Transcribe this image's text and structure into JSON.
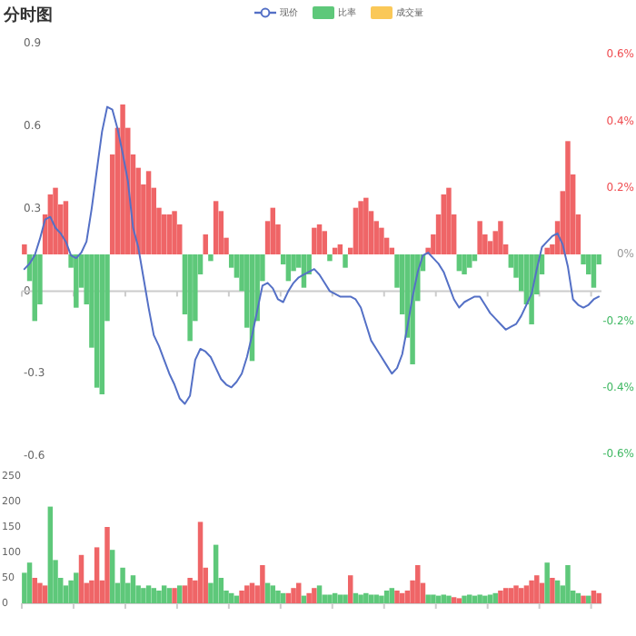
{
  "chart_data": [
    {
      "type": "line",
      "title": "分时图",
      "legend": "top",
      "categories": [
        null,
        null,
        null,
        null,
        null,
        null,
        null,
        null,
        null,
        null,
        null,
        null,
        null,
        null,
        null,
        null,
        null,
        null,
        null,
        null,
        null,
        null,
        null,
        null,
        null,
        null,
        null,
        null,
        null,
        null,
        null,
        null,
        null,
        null,
        null,
        null,
        null,
        null,
        null,
        null,
        null,
        null,
        null,
        null,
        null,
        null,
        null,
        null,
        null,
        null,
        null,
        null,
        null,
        null,
        null,
        null,
        null,
        null,
        null,
        null,
        null,
        null,
        null,
        null,
        null,
        null,
        null,
        null,
        null,
        null,
        null,
        null,
        null,
        null,
        null,
        null,
        null,
        null,
        null,
        null,
        null,
        null,
        null,
        null,
        null,
        null,
        null,
        null,
        null,
        null,
        null,
        null,
        null,
        null,
        null,
        null,
        null,
        null,
        null,
        null,
        null,
        null,
        null,
        null,
        null,
        null,
        null,
        null,
        null,
        null,
        null,
        null
      ],
      "ylim": [
        -0.6,
        0.9
      ],
      "yticks": [
        0.9,
        0.6,
        0.3,
        0,
        -0.3,
        -0.6
      ],
      "y2lim": [
        -0.6,
        0.6
      ],
      "y2ticks": [
        {
          "value": 0.6,
          "label": "0.6%"
        },
        {
          "value": 0.4,
          "label": "0.4%"
        },
        {
          "value": 0.2,
          "label": "0.2%"
        },
        {
          "value": 0,
          "label": "0%"
        },
        {
          "value": -0.2,
          "label": "-0.2%"
        },
        {
          "value": -0.4,
          "label": "-0.4%"
        },
        {
          "value": -0.6,
          "label": "-0.6%"
        }
      ],
      "series": [
        {
          "name": "现价",
          "type": "line",
          "axis": "y",
          "color": "#5470c6",
          "values": [
            0.08,
            0.1,
            0.13,
            0.19,
            0.26,
            0.27,
            0.23,
            0.21,
            0.18,
            0.13,
            0.12,
            0.14,
            0.18,
            0.3,
            0.44,
            0.58,
            0.67,
            0.66,
            0.59,
            0.5,
            0.4,
            0.23,
            0.16,
            0.05,
            -0.06,
            -0.16,
            -0.2,
            -0.25,
            -0.3,
            -0.34,
            -0.39,
            -0.41,
            -0.38,
            -0.25,
            -0.21,
            -0.22,
            -0.24,
            -0.28,
            -0.32,
            -0.34,
            -0.35,
            -0.33,
            -0.3,
            -0.24,
            -0.16,
            -0.07,
            0.02,
            0.03,
            0.01,
            -0.03,
            -0.04,
            0,
            0.03,
            0.05,
            0.06,
            0.07,
            0.08,
            0.06,
            0.03,
            0,
            -0.01,
            -0.02,
            -0.02,
            -0.02,
            -0.03,
            -0.06,
            -0.12,
            -0.18,
            -0.21,
            -0.24,
            -0.27,
            -0.3,
            -0.28,
            -0.23,
            -0.13,
            -0.02,
            0.07,
            0.13,
            0.14,
            0.12,
            0.1,
            0.07,
            0.02,
            -0.03,
            -0.06,
            -0.04,
            -0.03,
            -0.02,
            -0.02,
            -0.05,
            -0.08,
            -0.1,
            -0.12,
            -0.14,
            -0.13,
            -0.12,
            -0.09,
            -0.05,
            -0.01,
            0.08,
            0.16,
            0.18,
            0.2,
            0.21,
            0.17,
            0.09,
            -0.03,
            -0.05,
            -0.06,
            -0.05,
            -0.03,
            -0.02
          ]
        },
        {
          "name": "比率",
          "type": "bar",
          "axis": "y2",
          "color": "#5ec87a",
          "values": [
            0.03,
            -0.08,
            -0.2,
            -0.15,
            0.12,
            0.18,
            0.2,
            0.15,
            0.16,
            -0.04,
            -0.16,
            -0.1,
            -0.15,
            -0.28,
            -0.4,
            -0.42,
            -0.2,
            0.3,
            0.38,
            0.45,
            0.38,
            0.3,
            0.26,
            0.21,
            0.25,
            0.2,
            0.14,
            0.12,
            0.12,
            0.13,
            0.09,
            -0.18,
            -0.26,
            -0.2,
            -0.06,
            0.06,
            -0.02,
            0.16,
            0.13,
            0.05,
            -0.04,
            -0.07,
            -0.11,
            -0.22,
            -0.32,
            -0.2,
            -0.08,
            0.1,
            0.14,
            0.09,
            -0.03,
            -0.08,
            -0.05,
            -0.04,
            -0.1,
            -0.06,
            0.08,
            0.09,
            0.07,
            -0.02,
            0.02,
            0.03,
            -0.04,
            0.02,
            0.14,
            0.16,
            0.17,
            0.13,
            0.1,
            0.08,
            0.05,
            0.02,
            -0.1,
            -0.18,
            -0.25,
            -0.33,
            -0.14,
            -0.05,
            0.02,
            0.06,
            0.12,
            0.18,
            0.2,
            0.12,
            -0.05,
            -0.06,
            -0.04,
            -0.02,
            0.1,
            0.06,
            0.04,
            0.07,
            0.1,
            0.03,
            -0.04,
            -0.07,
            -0.11,
            -0.15,
            -0.21,
            -0.12,
            -0.06,
            0.02,
            0.03,
            0.1,
            0.19,
            0.34,
            0.24,
            0.12,
            -0.03,
            -0.06,
            -0.1,
            -0.03
          ],
          "colors": [
            "#ef6567",
            "#5ec87a",
            "#5ec87a",
            "#5ec87a",
            "#ef6567",
            "#ef6567",
            "#ef6567",
            "#ef6567",
            "#ef6567",
            "#5ec87a",
            "#5ec87a",
            "#5ec87a",
            "#5ec87a",
            "#5ec87a",
            "#5ec87a",
            "#5ec87a",
            "#5ec87a",
            "#ef6567",
            "#ef6567",
            "#ef6567",
            "#ef6567",
            "#ef6567",
            "#ef6567",
            "#ef6567",
            "#ef6567",
            "#ef6567",
            "#ef6567",
            "#ef6567",
            "#ef6567",
            "#ef6567",
            "#ef6567",
            "#5ec87a",
            "#5ec87a",
            "#5ec87a",
            "#5ec87a",
            "#ef6567",
            "#5ec87a",
            "#ef6567",
            "#ef6567",
            "#ef6567",
            "#5ec87a",
            "#5ec87a",
            "#5ec87a",
            "#5ec87a",
            "#5ec87a",
            "#5ec87a",
            "#5ec87a",
            "#ef6567",
            "#ef6567",
            "#ef6567",
            "#5ec87a",
            "#5ec87a",
            "#5ec87a",
            "#5ec87a",
            "#5ec87a",
            "#5ec87a",
            "#ef6567",
            "#ef6567",
            "#ef6567",
            "#5ec87a",
            "#ef6567",
            "#ef6567",
            "#5ec87a",
            "#ef6567",
            "#ef6567",
            "#ef6567",
            "#ef6567",
            "#ef6567",
            "#ef6567",
            "#ef6567",
            "#ef6567",
            "#ef6567",
            "#5ec87a",
            "#5ec87a",
            "#5ec87a",
            "#5ec87a",
            "#5ec87a",
            "#5ec87a",
            "#ef6567",
            "#ef6567",
            "#ef6567",
            "#ef6567",
            "#ef6567",
            "#ef6567",
            "#5ec87a",
            "#5ec87a",
            "#5ec87a",
            "#5ec87a",
            "#ef6567",
            "#ef6567",
            "#ef6567",
            "#ef6567",
            "#ef6567",
            "#ef6567",
            "#5ec87a",
            "#5ec87a",
            "#5ec87a",
            "#5ec87a",
            "#5ec87a",
            "#5ec87a",
            "#5ec87a",
            "#ef6567",
            "#ef6567",
            "#ef6567",
            "#ef6567",
            "#ef6567",
            "#ef6567",
            "#ef6567",
            "#5ec87a",
            "#5ec87a",
            "#5ec87a",
            "#5ec87a"
          ]
        }
      ]
    },
    {
      "type": "bar",
      "legend": "top",
      "categories": [
        null,
        null,
        null,
        null,
        null,
        null,
        null,
        null,
        null,
        null,
        null,
        null,
        null,
        null,
        null,
        null,
        null,
        null,
        null,
        null,
        null,
        null,
        null,
        null,
        null,
        null,
        null,
        null,
        null,
        null,
        null,
        null,
        null,
        null,
        null,
        null,
        null,
        null,
        null,
        null,
        null,
        null,
        null,
        null,
        null,
        null,
        null,
        null,
        null,
        null,
        null,
        null,
        null,
        null,
        null,
        null,
        null,
        null,
        null,
        null,
        null,
        null,
        null,
        null,
        null,
        null,
        null,
        null,
        null,
        null,
        null,
        null,
        null,
        null,
        null,
        null,
        null,
        null,
        null,
        null,
        null,
        null,
        null,
        null,
        null,
        null,
        null,
        null,
        null,
        null,
        null,
        null,
        null,
        null,
        null,
        null,
        null,
        null,
        null,
        null,
        null,
        null,
        null,
        null,
        null,
        null,
        null,
        null,
        null,
        null,
        null,
        null
      ],
      "ylim": [
        0,
        250
      ],
      "yticks": [
        0,
        50,
        100,
        150,
        200,
        250
      ],
      "series": [
        {
          "name": "成交量",
          "color": "#fac858",
          "values": [
            60,
            80,
            50,
            40,
            35,
            190,
            85,
            50,
            35,
            45,
            60,
            95,
            40,
            45,
            110,
            45,
            150,
            105,
            40,
            70,
            40,
            55,
            35,
            30,
            35,
            30,
            25,
            35,
            30,
            30,
            35,
            35,
            50,
            45,
            160,
            70,
            40,
            115,
            50,
            25,
            20,
            15,
            25,
            35,
            40,
            35,
            75,
            40,
            35,
            25,
            20,
            20,
            30,
            40,
            15,
            20,
            30,
            35,
            17,
            17,
            20,
            17,
            17,
            55,
            20,
            17,
            20,
            17,
            17,
            15,
            25,
            30,
            25,
            20,
            25,
            45,
            75,
            40,
            17,
            17,
            15,
            17,
            15,
            12,
            10,
            15,
            17,
            15,
            17,
            15,
            17,
            20,
            25,
            30,
            30,
            35,
            30,
            35,
            45,
            55,
            40,
            80,
            50,
            45,
            35,
            75,
            25,
            20,
            15,
            15,
            25,
            20
          ],
          "colors": [
            "#5ec87a",
            "#5ec87a",
            "#ef6567",
            "#ef6567",
            "#ef6567",
            "#5ec87a",
            "#5ec87a",
            "#5ec87a",
            "#5ec87a",
            "#5ec87a",
            "#5ec87a",
            "#ef6567",
            "#ef6567",
            "#ef6567",
            "#ef6567",
            "#ef6567",
            "#ef6567",
            "#5ec87a",
            "#5ec87a",
            "#5ec87a",
            "#5ec87a",
            "#5ec87a",
            "#5ec87a",
            "#5ec87a",
            "#5ec87a",
            "#5ec87a",
            "#5ec87a",
            "#5ec87a",
            "#5ec87a",
            "#ef6567",
            "#5ec87a",
            "#ef6567",
            "#ef6567",
            "#ef6567",
            "#ef6567",
            "#ef6567",
            "#5ec87a",
            "#5ec87a",
            "#5ec87a",
            "#5ec87a",
            "#5ec87a",
            "#5ec87a",
            "#ef6567",
            "#ef6567",
            "#ef6567",
            "#ef6567",
            "#ef6567",
            "#5ec87a",
            "#5ec87a",
            "#5ec87a",
            "#5ec87a",
            "#ef6567",
            "#ef6567",
            "#ef6567",
            "#5ec87a",
            "#ef6567",
            "#ef6567",
            "#5ec87a",
            "#5ec87a",
            "#5ec87a",
            "#5ec87a",
            "#5ec87a",
            "#5ec87a",
            "#ef6567",
            "#5ec87a",
            "#5ec87a",
            "#5ec87a",
            "#5ec87a",
            "#5ec87a",
            "#5ec87a",
            "#5ec87a",
            "#5ec87a",
            "#ef6567",
            "#ef6567",
            "#ef6567",
            "#ef6567",
            "#ef6567",
            "#ef6567",
            "#5ec87a",
            "#5ec87a",
            "#5ec87a",
            "#5ec87a",
            "#5ec87a",
            "#ef6567",
            "#ef6567",
            "#5ec87a",
            "#5ec87a",
            "#5ec87a",
            "#5ec87a",
            "#5ec87a",
            "#5ec87a",
            "#5ec87a",
            "#ef6567",
            "#ef6567",
            "#ef6567",
            "#ef6567",
            "#ef6567",
            "#ef6567",
            "#ef6567",
            "#ef6567",
            "#ef6567",
            "#5ec87a",
            "#ef6567",
            "#5ec87a",
            "#5ec87a",
            "#5ec87a",
            "#5ec87a",
            "#5ec87a",
            "#ef6567",
            "#5ec87a",
            "#ef6567",
            "#ef6567"
          ]
        }
      ]
    }
  ]
}
